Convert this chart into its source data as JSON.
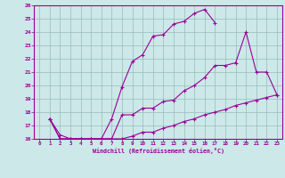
{
  "xlabel": "Windchill (Refroidissement éolien,°C)",
  "xlim": [
    -0.5,
    23.5
  ],
  "ylim": [
    16,
    26
  ],
  "xtick_vals": [
    0,
    1,
    2,
    3,
    4,
    5,
    6,
    7,
    8,
    9,
    10,
    11,
    12,
    13,
    14,
    15,
    16,
    17,
    18,
    19,
    20,
    21,
    22,
    23
  ],
  "xtick_labels": [
    "0",
    "1",
    "2",
    "3",
    "4",
    "5",
    "6",
    "7",
    "8",
    "9",
    "10",
    "11",
    "12",
    "13",
    "14",
    "15",
    "16",
    "17",
    "18",
    "19",
    "20",
    "21",
    "22",
    "23"
  ],
  "ytick_vals": [
    16,
    17,
    18,
    19,
    20,
    21,
    22,
    23,
    24,
    25,
    26
  ],
  "ytick_labels": [
    "16",
    "17",
    "18",
    "19",
    "20",
    "21",
    "22",
    "23",
    "24",
    "25",
    "26"
  ],
  "bg_color": "#cce8e8",
  "line_color": "#990099",
  "grid_color": "#99bbbb",
  "lines": [
    {
      "x": [
        1,
        2,
        3,
        4,
        5,
        6,
        7,
        8,
        9,
        10,
        11,
        12,
        13,
        14,
        15,
        16,
        17
      ],
      "y": [
        17.5,
        16.3,
        16.0,
        16.0,
        16.0,
        16.0,
        17.5,
        19.9,
        21.8,
        22.3,
        23.7,
        23.8,
        24.6,
        24.8,
        25.4,
        25.7,
        24.7
      ]
    },
    {
      "x": [
        1,
        2,
        3,
        4,
        5,
        6,
        7,
        8,
        9,
        10,
        11,
        12,
        13,
        14,
        15,
        16,
        17,
        18,
        19,
        20,
        21,
        22,
        23
      ],
      "y": [
        17.5,
        16.0,
        16.0,
        16.0,
        16.0,
        16.0,
        16.0,
        17.8,
        17.8,
        18.3,
        18.3,
        18.8,
        18.9,
        19.6,
        20.0,
        20.6,
        21.5,
        21.5,
        21.7,
        24.0,
        21.0,
        21.0,
        19.3
      ]
    },
    {
      "x": [
        1,
        2,
        3,
        4,
        5,
        6,
        7,
        8,
        9,
        10,
        11,
        12,
        13,
        14,
        15,
        16,
        17,
        18,
        19,
        20,
        21,
        22,
        23
      ],
      "y": [
        17.5,
        16.0,
        16.0,
        16.0,
        16.0,
        16.0,
        16.0,
        16.0,
        16.2,
        16.5,
        16.5,
        16.8,
        17.0,
        17.3,
        17.5,
        17.8,
        18.0,
        18.2,
        18.5,
        18.7,
        18.9,
        19.1,
        19.3
      ]
    }
  ]
}
